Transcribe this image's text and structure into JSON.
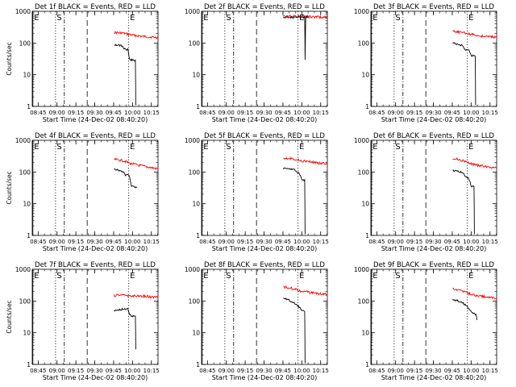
{
  "colors": {
    "events": "#000000",
    "lld": "#ff0000",
    "axis": "#000000",
    "background": "#ffffff"
  },
  "chart_data": {
    "type": "line",
    "layout": "3x3 grid of panels",
    "y_scale": "log",
    "ylim": [
      1,
      1000
    ],
    "ytick_labels": [
      "1",
      "10",
      "100",
      "1000"
    ],
    "ylabel": "Counts/sec",
    "xlabel": "Start Time (24-Dec-02 08:40:20)",
    "xtick_labels": [
      "08:45",
      "09:00",
      "09:15",
      "09:30",
      "09:45",
      "10:00",
      "10:15"
    ],
    "xlim_minutes": [
      0,
      100
    ],
    "xtick_positions_minutes": [
      4.7,
      19.7,
      34.7,
      49.7,
      64.7,
      79.7,
      94.7
    ],
    "markers": [
      {
        "label": "E",
        "x_minutes": 0.5,
        "style": "solid"
      },
      {
        "label": "S",
        "x_minutes": 18.5,
        "style": "dotted"
      },
      {
        "label": "",
        "x_minutes": 25.5,
        "style": "dash-dot"
      },
      {
        "label": "",
        "x_minutes": 43.7,
        "style": "dashed"
      },
      {
        "label": "E",
        "x_minutes": 76.7,
        "style": "dotted"
      }
    ],
    "panels": [
      {
        "title": "Det 1f BLACK = Events, RED = LLD",
        "show_ylabel": true,
        "lld": [
          [
            65,
            215
          ],
          [
            72,
            205
          ],
          [
            80,
            175
          ],
          [
            90,
            158
          ],
          [
            100,
            148
          ]
        ],
        "events": [
          [
            65,
            90
          ],
          [
            71,
            82
          ],
          [
            74,
            62
          ],
          [
            76,
            62
          ],
          [
            77.5,
            30
          ],
          [
            82,
            28
          ],
          [
            82.3,
            1.1
          ]
        ]
      },
      {
        "title": "Det 2f BLACK = Events, RED = LLD",
        "show_ylabel": false,
        "lld": [
          [
            65,
            680
          ],
          [
            75,
            700
          ],
          [
            85,
            680
          ],
          [
            95,
            650
          ],
          [
            100,
            640
          ]
        ],
        "events": [
          [
            65,
            640
          ],
          [
            75,
            650
          ],
          [
            82,
            650
          ],
          [
            82.3,
            30
          ],
          [
            82.8,
            660
          ],
          [
            85,
            655
          ]
        ]
      },
      {
        "title": "Det 3f BLACK = Events, RED = LLD",
        "show_ylabel": false,
        "lld": [
          [
            65,
            230
          ],
          [
            72,
            215
          ],
          [
            78,
            195
          ],
          [
            86,
            170
          ],
          [
            100,
            155
          ]
        ],
        "events": [
          [
            65,
            100
          ],
          [
            72,
            85
          ],
          [
            75,
            62
          ],
          [
            78,
            60
          ],
          [
            80,
            40
          ],
          [
            83,
            38
          ],
          [
            83.3,
            1.1
          ]
        ]
      },
      {
        "title": "Det 4f BLACK = Events, RED = LLD",
        "show_ylabel": true,
        "lld": [
          [
            65,
            250
          ],
          [
            72,
            230
          ],
          [
            78,
            185
          ],
          [
            86,
            160
          ],
          [
            100,
            125
          ]
        ],
        "events": [
          [
            65,
            125
          ],
          [
            72,
            105
          ],
          [
            74,
            80
          ],
          [
            77,
            80
          ],
          [
            79,
            35
          ],
          [
            83,
            32
          ]
        ]
      },
      {
        "title": "Det 5f BLACK = Events, RED = LLD",
        "show_ylabel": false,
        "lld": [
          [
            65,
            280
          ],
          [
            72,
            270
          ],
          [
            78,
            230
          ],
          [
            86,
            210
          ],
          [
            100,
            178
          ]
        ],
        "events": [
          [
            65,
            130
          ],
          [
            72,
            125
          ],
          [
            74,
            115
          ],
          [
            78,
            85
          ],
          [
            80,
            55
          ],
          [
            82,
            55
          ],
          [
            82.3,
            1.1
          ]
        ]
      },
      {
        "title": "Det 6f BLACK = Events, RED = LLD",
        "show_ylabel": false,
        "lld": [
          [
            65,
            270
          ],
          [
            72,
            240
          ],
          [
            78,
            190
          ],
          [
            86,
            160
          ],
          [
            100,
            135
          ]
        ],
        "events": [
          [
            65,
            110
          ],
          [
            72,
            100
          ],
          [
            76,
            70
          ],
          [
            78,
            60
          ],
          [
            80,
            35
          ],
          [
            82,
            35
          ],
          [
            82.3,
            1.1
          ]
        ]
      },
      {
        "title": "Det 7f BLACK = Events, RED = LLD",
        "show_ylabel": true,
        "lld": [
          [
            65,
            150
          ],
          [
            72,
            158
          ],
          [
            78,
            145
          ],
          [
            86,
            145
          ],
          [
            100,
            130
          ]
        ],
        "events": [
          [
            65,
            50
          ],
          [
            72,
            55
          ],
          [
            76,
            55
          ],
          [
            78,
            35
          ],
          [
            82,
            32
          ],
          [
            82.3,
            3
          ]
        ]
      },
      {
        "title": "Det 8f BLACK = Events, RED = LLD",
        "show_ylabel": false,
        "lld": [
          [
            65,
            280
          ],
          [
            72,
            250
          ],
          [
            78,
            210
          ],
          [
            86,
            185
          ],
          [
            100,
            160
          ]
        ],
        "events": [
          [
            65,
            130
          ],
          [
            72,
            95
          ],
          [
            76,
            75
          ],
          [
            80,
            50
          ],
          [
            82,
            48
          ],
          [
            82.3,
            1.1
          ]
        ]
      },
      {
        "title": "Det 9f BLACK = Events, RED = LLD",
        "show_ylabel": false,
        "lld": [
          [
            65,
            250
          ],
          [
            72,
            220
          ],
          [
            78,
            170
          ],
          [
            86,
            145
          ],
          [
            100,
            120
          ]
        ],
        "events": [
          [
            65,
            110
          ],
          [
            72,
            95
          ],
          [
            76,
            70
          ],
          [
            80,
            45
          ],
          [
            84,
            35
          ],
          [
            84.3,
            25
          ]
        ]
      }
    ]
  }
}
